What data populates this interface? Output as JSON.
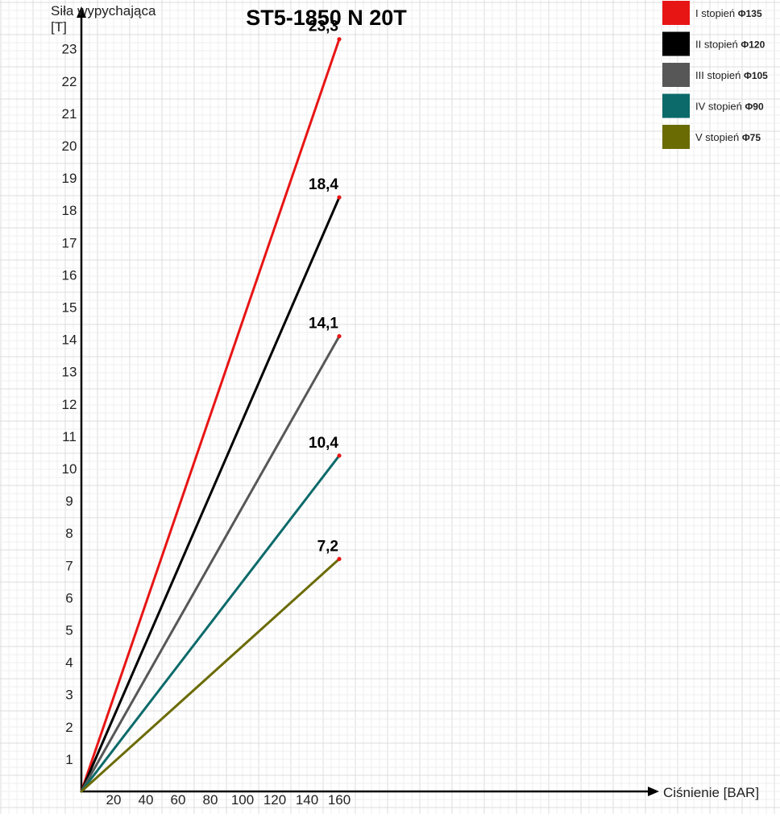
{
  "chart_data": {
    "type": "line",
    "title": "ST5-1850 N 20T",
    "xlabel": "Ciśnienie [BAR]",
    "ylabel_line1": "Siła wypychająca",
    "ylabel_line2": "[T]",
    "xlim": [
      0,
      180
    ],
    "ylim": [
      0,
      24
    ],
    "x_ticks": [
      "20",
      "40",
      "60",
      "80",
      "100",
      "120",
      "140",
      "160"
    ],
    "y_ticks": [
      "1",
      "2",
      "3",
      "4",
      "5",
      "6",
      "7",
      "8",
      "9",
      "10",
      "11",
      "12",
      "13",
      "14",
      "15",
      "16",
      "17",
      "18",
      "19",
      "20",
      "21",
      "22",
      "23"
    ],
    "grid": true,
    "legend_position": "top-right",
    "series": [
      {
        "name": "I stopień",
        "diameter": "Φ135",
        "color": "#e81515",
        "x": [
          0,
          160
        ],
        "y": [
          0,
          23.3
        ],
        "end_label": "23,3"
      },
      {
        "name": "II stopień",
        "diameter": "Φ120",
        "color": "#000000",
        "x": [
          0,
          160
        ],
        "y": [
          0,
          18.4
        ],
        "end_label": "18,4"
      },
      {
        "name": "III stopień",
        "diameter": "Φ105",
        "color": "#575757",
        "x": [
          0,
          160
        ],
        "y": [
          0,
          14.1
        ],
        "end_label": "14,1"
      },
      {
        "name": "IV stopień",
        "diameter": "Φ90",
        "color": "#0c6a6a",
        "x": [
          0,
          160
        ],
        "y": [
          0,
          10.4
        ],
        "end_label": "10,4"
      },
      {
        "name": "V stopień",
        "diameter": "Φ75",
        "color": "#6b6b03",
        "x": [
          0,
          160
        ],
        "y": [
          0,
          7.2
        ],
        "end_label": "7,2"
      }
    ],
    "endpoint_marker_color": "#e81515"
  }
}
